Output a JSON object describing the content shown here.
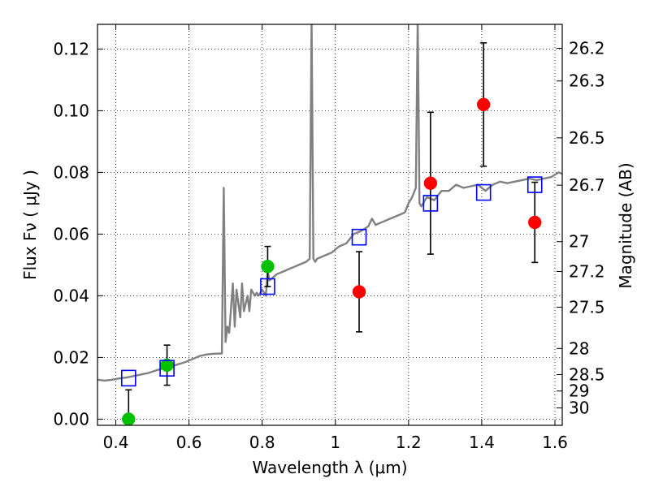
{
  "chart_data": {
    "type": "scatter",
    "title": "",
    "xlabel": "Wavelength  λ (μm)",
    "ylabel": "Flux  Fν  ( μJy )",
    "y2label": "Magnitude (AB)",
    "xlim": [
      0.35,
      1.62
    ],
    "ylim": [
      -0.002,
      0.128
    ],
    "grid": true,
    "x_ticks": [
      "0.4",
      "0.6",
      "0.8",
      "1",
      "1.2",
      "1.4",
      "1.6"
    ],
    "x_tick_values": [
      0.4,
      0.6,
      0.8,
      1.0,
      1.2,
      1.4,
      1.6
    ],
    "y_ticks": [
      "0.00",
      "0.02",
      "0.04",
      "0.06",
      "0.08",
      "0.10",
      "0.12"
    ],
    "y_tick_values": [
      0.0,
      0.02,
      0.04,
      0.06,
      0.08,
      0.1,
      0.12
    ],
    "mag_ticks": [
      "26.2",
      "26.3",
      "26.5",
      "26.7",
      "27",
      "27.2",
      "27.5",
      "28",
      "28.5",
      "29",
      "30"
    ],
    "mag_tick_values": [
      26.2,
      26.3,
      26.5,
      26.7,
      27.0,
      27.2,
      27.5,
      28.0,
      28.5,
      29.0,
      30.0
    ],
    "colors": {
      "spectrum": "#808080",
      "green_points": "#00c000",
      "red_points": "#ff0000",
      "model_squares": "#0000ff",
      "error_bars": "#000000",
      "grid": "#000000"
    },
    "spectrum": {
      "x": [
        0.35,
        0.37,
        0.39,
        0.41,
        0.43,
        0.45,
        0.47,
        0.49,
        0.51,
        0.53,
        0.55,
        0.57,
        0.59,
        0.61,
        0.63,
        0.65,
        0.67,
        0.69,
        0.695,
        0.7,
        0.705,
        0.71,
        0.72,
        0.725,
        0.73,
        0.74,
        0.745,
        0.75,
        0.76,
        0.765,
        0.77,
        0.78,
        0.785,
        0.79,
        0.8,
        0.81,
        0.815,
        0.82,
        0.83,
        0.84,
        0.86,
        0.88,
        0.9,
        0.92,
        0.93,
        0.935,
        0.94,
        0.945,
        0.95,
        0.97,
        0.99,
        1.01,
        1.03,
        1.05,
        1.07,
        1.09,
        1.1,
        1.11,
        1.13,
        1.15,
        1.17,
        1.19,
        1.2,
        1.21,
        1.22,
        1.225,
        1.23,
        1.235,
        1.24,
        1.25,
        1.27,
        1.29,
        1.31,
        1.33,
        1.35,
        1.37,
        1.39,
        1.41,
        1.43,
        1.45,
        1.47,
        1.49,
        1.51,
        1.53,
        1.55,
        1.57,
        1.59,
        1.61,
        1.62
      ],
      "y": [
        0.0128,
        0.0125,
        0.0128,
        0.0132,
        0.0135,
        0.014,
        0.0145,
        0.015,
        0.0158,
        0.0165,
        0.017,
        0.0178,
        0.0185,
        0.0195,
        0.0205,
        0.021,
        0.0212,
        0.0213,
        0.075,
        0.025,
        0.03,
        0.028,
        0.044,
        0.03,
        0.042,
        0.033,
        0.044,
        0.035,
        0.04,
        0.035,
        0.042,
        0.04,
        0.041,
        0.04,
        0.042,
        0.04,
        0.048,
        0.045,
        0.046,
        0.047,
        0.048,
        0.049,
        0.05,
        0.051,
        0.052,
        0.13,
        0.052,
        0.051,
        0.052,
        0.053,
        0.054,
        0.056,
        0.057,
        0.06,
        0.061,
        0.0625,
        0.065,
        0.063,
        0.064,
        0.065,
        0.066,
        0.067,
        0.07,
        0.072,
        0.075,
        0.13,
        0.07,
        0.069,
        0.07,
        0.072,
        0.071,
        0.074,
        0.074,
        0.076,
        0.075,
        0.0755,
        0.076,
        0.074,
        0.076,
        0.077,
        0.0765,
        0.077,
        0.0775,
        0.078,
        0.0775,
        0.078,
        0.0785,
        0.08,
        0.0795
      ]
    },
    "series": [
      {
        "marker": "circle",
        "color": "#00c000",
        "points": [
          {
            "x": 0.435,
            "y": 0.0,
            "err": 0.0095
          },
          {
            "x": 0.54,
            "y": 0.0175,
            "err": 0.0065
          },
          {
            "x": 0.815,
            "y": 0.0495,
            "err": 0.0065
          }
        ]
      },
      {
        "marker": "circle",
        "color": "#ff0000",
        "points": [
          {
            "x": 1.065,
            "y": 0.0413,
            "err": 0.013
          },
          {
            "x": 1.26,
            "y": 0.0765,
            "err": 0.023
          },
          {
            "x": 1.405,
            "y": 0.102,
            "err": 0.02
          },
          {
            "x": 1.545,
            "y": 0.0638,
            "err": 0.013
          }
        ]
      },
      {
        "marker": "square",
        "color": "#0000ff",
        "points": [
          {
            "x": 0.435,
            "y": 0.0133
          },
          {
            "x": 0.54,
            "y": 0.0165
          },
          {
            "x": 0.815,
            "y": 0.043
          },
          {
            "x": 1.065,
            "y": 0.059
          },
          {
            "x": 1.26,
            "y": 0.07
          },
          {
            "x": 1.405,
            "y": 0.0735
          },
          {
            "x": 1.545,
            "y": 0.076
          }
        ]
      }
    ]
  }
}
